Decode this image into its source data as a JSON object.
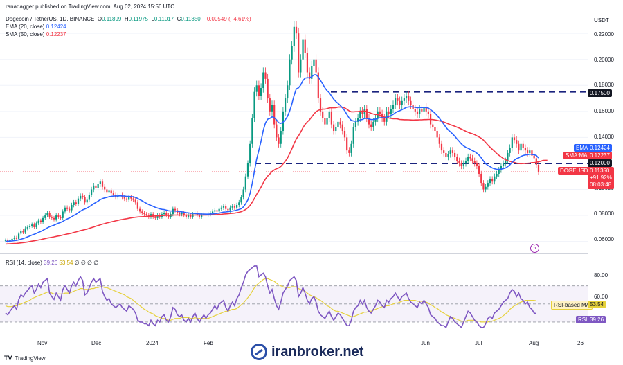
{
  "header": {
    "publisher_line": "ranadagger published on TradingView.com, Aug 02, 2024 15:56 UTC",
    "symbol_line": "Dogecoin / TetherUS, 1D, BINANCE",
    "o_label": "O",
    "o_value": "0.11899",
    "h_label": "H",
    "h_value": "0.11975",
    "l_label": "L",
    "l_value": "0.11017",
    "c_label": "C",
    "c_value": "0.11350",
    "change": "−0.00549 (−4.61%)",
    "ema_label": "EMA (20, close)",
    "ema_value": "0.12424",
    "sma_label": "SMA (50, close)",
    "sma_value": "0.12237",
    "rsi_label": "RSI (14, close)",
    "rsi_value": "39.26",
    "rsi_ma_value": "53.54",
    "rsi_extra": "∅ ∅ ∅ ∅"
  },
  "price_axis": {
    "currency": "USDT",
    "ticks": [
      "0.22000",
      "0.20000",
      "0.18000",
      "0.16000",
      "0.14000",
      "0.10000",
      "0.08000",
      "0.06000"
    ],
    "tags": {
      "resistance": "0.17500",
      "ema_name": "EMA",
      "ema": "0.12424",
      "sma_name": "SMA:MA",
      "sma": "0.12237",
      "support": "0.12000",
      "symbol": "DOGEUSDT",
      "last": "0.11350",
      "last_change": "+91.92%",
      "countdown": "08:03:48"
    }
  },
  "rsi_axis": {
    "ticks": [
      "80.00",
      "60.00"
    ],
    "ma_tag_name": "RSI-based MA",
    "ma_tag": "53.54",
    "rsi_tag_name": "RSI",
    "rsi_tag": "39.26"
  },
  "time_axis": [
    "Nov",
    "Dec",
    "2024",
    "Feb",
    "Jun",
    "Jul",
    "Aug",
    "26"
  ],
  "footer": {
    "brand": "TradingView",
    "watermark": "iranbroker.net"
  },
  "colors": {
    "up": "#089981",
    "down": "#f23645",
    "ema": "#2962ff",
    "sma": "#f23645",
    "rsi": "#7e57c2",
    "rsi_ma": "#e6d13b",
    "level": "#1a237e"
  },
  "chart_data": {
    "type": "candlestick",
    "symbol": "DOGEUSDT",
    "ylim": [
      0.055,
      0.235
    ],
    "rsi_ylim": [
      20,
      95
    ],
    "levels": [
      0.175,
      0.12
    ],
    "closes": [
      0.061,
      0.06,
      0.061,
      0.062,
      0.063,
      0.062,
      0.066,
      0.068,
      0.067,
      0.07,
      0.071,
      0.072,
      0.073,
      0.071,
      0.074,
      0.076,
      0.075,
      0.078,
      0.08,
      0.082,
      0.079,
      0.078,
      0.077,
      0.08,
      0.079,
      0.078,
      0.083,
      0.086,
      0.085,
      0.084,
      0.088,
      0.09,
      0.089,
      0.093,
      0.095,
      0.094,
      0.09,
      0.092,
      0.096,
      0.1,
      0.103,
      0.101,
      0.104,
      0.106,
      0.102,
      0.1,
      0.098,
      0.099,
      0.097,
      0.096,
      0.094,
      0.095,
      0.096,
      0.094,
      0.093,
      0.092,
      0.094,
      0.093,
      0.092,
      0.09,
      0.085,
      0.083,
      0.082,
      0.081,
      0.08,
      0.079,
      0.081,
      0.079,
      0.078,
      0.08,
      0.079,
      0.081,
      0.082,
      0.08,
      0.079,
      0.081,
      0.085,
      0.084,
      0.082,
      0.081,
      0.082,
      0.08,
      0.079,
      0.08,
      0.079,
      0.081,
      0.082,
      0.08,
      0.079,
      0.08,
      0.081,
      0.08,
      0.081,
      0.082,
      0.083,
      0.084,
      0.083,
      0.085,
      0.086,
      0.087,
      0.085,
      0.084,
      0.086,
      0.087,
      0.086,
      0.088,
      0.09,
      0.094,
      0.1,
      0.11,
      0.12,
      0.135,
      0.155,
      0.175,
      0.18,
      0.172,
      0.178,
      0.19,
      0.185,
      0.17,
      0.16,
      0.165,
      0.15,
      0.14,
      0.135,
      0.145,
      0.16,
      0.17,
      0.18,
      0.2,
      0.21,
      0.225,
      0.22,
      0.19,
      0.2,
      0.215,
      0.205,
      0.19,
      0.185,
      0.195,
      0.2,
      0.19,
      0.17,
      0.16,
      0.155,
      0.15,
      0.155,
      0.16,
      0.15,
      0.145,
      0.148,
      0.152,
      0.15,
      0.145,
      0.14,
      0.13,
      0.128,
      0.135,
      0.148,
      0.152,
      0.155,
      0.16,
      0.158,
      0.162,
      0.155,
      0.15,
      0.148,
      0.152,
      0.155,
      0.16,
      0.158,
      0.155,
      0.152,
      0.16,
      0.158,
      0.162,
      0.165,
      0.17,
      0.168,
      0.165,
      0.168,
      0.17,
      0.172,
      0.168,
      0.165,
      0.162,
      0.16,
      0.158,
      0.162,
      0.16,
      0.163,
      0.16,
      0.158,
      0.15,
      0.148,
      0.145,
      0.14,
      0.135,
      0.13,
      0.128,
      0.125,
      0.127,
      0.13,
      0.128,
      0.125,
      0.122,
      0.12,
      0.118,
      0.12,
      0.122,
      0.125,
      0.124,
      0.122,
      0.12,
      0.118,
      0.112,
      0.105,
      0.1,
      0.102,
      0.105,
      0.108,
      0.106,
      0.11,
      0.112,
      0.115,
      0.118,
      0.12,
      0.122,
      0.128,
      0.132,
      0.14,
      0.138,
      0.135,
      0.13,
      0.135,
      0.132,
      0.13,
      0.128,
      0.13,
      0.126,
      0.124,
      0.119,
      0.1135
    ],
    "ema20": [
      0.06,
      0.0601,
      0.0602,
      0.0604,
      0.0606,
      0.0608,
      0.0612,
      0.0617,
      0.0622,
      0.0628,
      0.0635,
      0.0642,
      0.0649,
      0.0655,
      0.0662,
      0.067,
      0.0677,
      0.0685,
      0.0695,
      0.0705,
      0.0713,
      0.0719,
      0.0725,
      0.0733,
      0.074,
      0.0746,
      0.0754,
      0.0764,
      0.0773,
      0.078,
      0.079,
      0.08,
      0.0809,
      0.0821,
      0.0833,
      0.0843,
      0.085,
      0.0857,
      0.0867,
      0.0878,
      0.089,
      0.09,
      0.091,
      0.0921,
      0.0929,
      0.0935,
      0.0939,
      0.0944,
      0.0947,
      0.0949,
      0.095,
      0.095,
      0.0951,
      0.095,
      0.0949,
      0.0947,
      0.0946,
      0.0945,
      0.0943,
      0.0939,
      0.0931,
      0.0921,
      0.0912,
      0.0902,
      0.0893,
      0.0884,
      0.0877,
      0.087,
      0.0862,
      0.0857,
      0.0851,
      0.0847,
      0.0845,
      0.0841,
      0.0836,
      0.0834,
      0.0835,
      0.0834,
      0.0832,
      0.083,
      0.0828,
      0.0825,
      0.0822,
      0.082,
      0.0817,
      0.0816,
      0.0815,
      0.0814,
      0.0812,
      0.0811,
      0.0811,
      0.081,
      0.081,
      0.0811,
      0.0812,
      0.0814,
      0.0816,
      0.0818,
      0.0822,
      0.0826,
      0.0827,
      0.0829,
      0.0831,
      0.0834,
      0.0837,
      0.0841,
      0.0846,
      0.0852,
      0.0866,
      0.089,
      0.0919,
      0.0969,
      0.1048,
      0.1139,
      0.1232,
      0.1301,
      0.1371,
      0.1454,
      0.1512,
      0.154,
      0.1546,
      0.1558,
      0.1552,
      0.1535,
      0.1513,
      0.1508,
      0.1517,
      0.1536,
      0.1562,
      0.1604,
      0.1657,
      0.1723,
      0.1773,
      0.1782,
      0.1803,
      0.1836,
      0.1856,
      0.1859,
      0.1858,
      0.1867,
      0.1881,
      0.1882,
      0.1865,
      0.1839,
      0.181,
      0.1781,
      0.1759,
      0.1744,
      0.1719,
      0.1694,
      0.1675,
      0.1661,
      0.1646,
      0.1627,
      0.1605,
      0.1576,
      0.1549,
      0.1531,
      0.1526,
      0.1525,
      0.1527,
      0.1534,
      0.1538,
      0.1546,
      0.1546,
      0.1542,
      0.1537,
      0.1538,
      0.154,
      0.1546,
      0.1551,
      0.1551,
      0.155,
      0.1556,
      0.1561,
      0.1569,
      0.1577,
      0.159,
      0.1599,
      0.1605,
      0.1613,
      0.1622,
      0.1631,
      0.1634,
      0.1636,
      0.1634,
      0.1631,
      0.1628,
      0.163,
      0.1629,
      0.1631,
      0.1629,
      0.1625,
      0.1613,
      0.16,
      0.1586,
      0.1568,
      0.1547,
      0.1524,
      0.1501,
      0.1477,
      0.1458,
      0.1443,
      0.1427,
      0.1409,
      0.1388,
      0.1369,
      0.135,
      0.1335,
      0.1324,
      0.1317,
      0.1308,
      0.1299,
      0.129,
      0.1279,
      0.1264,
      0.1243,
      0.1219,
      0.1198,
      0.1185,
      0.1176,
      0.1165,
      0.1159,
      0.1155,
      0.1154,
      0.1156,
      0.116,
      0.1165,
      0.1176,
      0.1189,
      0.1209,
      0.1225,
      0.1237,
      0.1243,
      0.1254,
      0.1261,
      0.1265,
      0.1267,
      0.1271,
      0.1269,
      0.1267,
      0.1261,
      0.1242
    ],
    "sma50": [
      0.058,
      0.0581,
      0.0582,
      0.0583,
      0.0584,
      0.0585,
      0.0587,
      0.0589,
      0.0591,
      0.0593,
      0.0596,
      0.0599,
      0.0602,
      0.0605,
      0.0608,
      0.0611,
      0.0614,
      0.0618,
      0.0622,
      0.0626,
      0.0629,
      0.0632,
      0.0635,
      0.0639,
      0.0642,
      0.0645,
      0.0649,
      0.0653,
      0.0657,
      0.066,
      0.0664,
      0.0669,
      0.0673,
      0.0678,
      0.0683,
      0.0687,
      0.0691,
      0.0695,
      0.07,
      0.0706,
      0.0711,
      0.0717,
      0.0722,
      0.0728,
      0.0733,
      0.0737,
      0.0742,
      0.0746,
      0.075,
      0.0754,
      0.0758,
      0.0762,
      0.0766,
      0.0769,
      0.0772,
      0.0775,
      0.0778,
      0.0781,
      0.0784,
      0.0786,
      0.0788,
      0.0789,
      0.079,
      0.0791,
      0.0792,
      0.0793,
      0.0794,
      0.0795,
      0.0796,
      0.0797,
      0.0798,
      0.0799,
      0.08,
      0.0801,
      0.0801,
      0.0802,
      0.0803,
      0.0803,
      0.0803,
      0.0803,
      0.0803,
      0.0803,
      0.0803,
      0.0803,
      0.0803,
      0.0803,
      0.0803,
      0.0803,
      0.0803,
      0.0803,
      0.0803,
      0.0803,
      0.0804,
      0.0804,
      0.0805,
      0.0806,
      0.0806,
      0.0808,
      0.0809,
      0.0811,
      0.0812,
      0.0813,
      0.0815,
      0.0817,
      0.0818,
      0.0821,
      0.0824,
      0.0829,
      0.0836,
      0.0846,
      0.0859,
      0.0877,
      0.0902,
      0.0931,
      0.0962,
      0.0989,
      0.1018,
      0.1051,
      0.108,
      0.1102,
      0.1119,
      0.1138,
      0.115,
      0.1159,
      0.1165,
      0.1177,
      0.1196,
      0.1217,
      0.1242,
      0.1276,
      0.1312,
      0.1352,
      0.1389,
      0.1412,
      0.1441,
      0.1474,
      0.15,
      0.152,
      0.1536,
      0.1557,
      0.158,
      0.1598,
      0.1608,
      0.1614,
      0.1617,
      0.1617,
      0.1621,
      0.1627,
      0.1629,
      0.1628,
      0.1629,
      0.1633,
      0.1634,
      0.1632,
      0.1627,
      0.1616,
      0.1604,
      0.1597,
      0.1597,
      0.1598,
      0.1598,
      0.1602,
      0.1601,
      0.1603,
      0.1598,
      0.1592,
      0.1585,
      0.158,
      0.1576,
      0.1575,
      0.157,
      0.1564,
      0.1557,
      0.1554,
      0.1549,
      0.1546,
      0.1543,
      0.1544,
      0.1542,
      0.1538,
      0.1537,
      0.1536,
      0.1536,
      0.1535,
      0.1534,
      0.1533,
      0.1534,
      0.1534,
      0.1535,
      0.1535,
      0.1537,
      0.1537,
      0.1538,
      0.1538,
      0.1537,
      0.1534,
      0.1531,
      0.1527,
      0.1524,
      0.1518,
      0.1512,
      0.1505,
      0.1498,
      0.1492,
      0.1486,
      0.1479,
      0.1472,
      0.1464,
      0.1456,
      0.1447,
      0.144,
      0.1433,
      0.1428,
      0.1421,
      0.1412,
      0.1403,
      0.1393,
      0.1379,
      0.1361,
      0.1342,
      0.1325,
      0.1309,
      0.1294,
      0.1277,
      0.1263,
      0.1251,
      0.1238,
      0.1229,
      0.1221,
      0.1216,
      0.1212,
      0.1208,
      0.1202,
      0.1199,
      0.1198,
      0.1199,
      0.12,
      0.1201,
      0.1203,
      0.1206,
      0.1206,
      0.1209,
      0.1213,
      0.1217,
      0.1223,
      0.1224,
      0.1224
    ],
    "rsi": [
      40,
      38,
      42,
      45,
      48,
      44,
      55,
      60,
      58,
      62,
      65,
      68,
      70,
      62,
      66,
      72,
      68,
      74,
      76,
      78,
      62,
      58,
      55,
      62,
      58,
      54,
      66,
      70,
      66,
      62,
      70,
      74,
      70,
      76,
      80,
      76,
      60,
      62,
      68,
      74,
      78,
      74,
      76,
      78,
      64,
      58,
      54,
      56,
      50,
      48,
      46,
      48,
      50,
      46,
      44,
      42,
      48,
      46,
      44,
      40,
      32,
      30,
      30,
      28,
      28,
      26,
      32,
      28,
      26,
      32,
      30,
      36,
      38,
      32,
      30,
      36,
      46,
      44,
      38,
      36,
      38,
      32,
      30,
      34,
      30,
      36,
      40,
      34,
      30,
      34,
      38,
      34,
      38,
      40,
      44,
      48,
      44,
      50,
      52,
      54,
      46,
      42,
      48,
      52,
      48,
      56,
      60,
      68,
      74,
      82,
      86,
      88,
      90,
      92,
      92,
      80,
      82,
      84,
      80,
      70,
      62,
      66,
      56,
      48,
      44,
      52,
      62,
      66,
      70,
      76,
      78,
      80,
      76,
      58,
      62,
      68,
      62,
      54,
      50,
      56,
      58,
      52,
      42,
      38,
      36,
      34,
      38,
      42,
      36,
      32,
      36,
      40,
      38,
      34,
      30,
      26,
      26,
      32,
      42,
      46,
      48,
      54,
      50,
      54,
      46,
      42,
      40,
      44,
      48,
      54,
      52,
      48,
      46,
      54,
      52,
      56,
      58,
      62,
      58,
      54,
      58,
      60,
      62,
      56,
      52,
      50,
      48,
      46,
      52,
      50,
      54,
      50,
      46,
      38,
      36,
      34,
      30,
      28,
      26,
      26,
      24,
      30,
      36,
      34,
      30,
      28,
      26,
      24,
      30,
      36,
      42,
      40,
      36,
      32,
      30,
      26,
      24,
      24,
      28,
      34,
      36,
      34,
      40,
      42,
      44,
      48,
      52,
      54,
      56,
      62,
      66,
      64,
      58,
      62,
      56,
      54,
      50,
      52,
      46,
      44,
      40,
      39.26
    ],
    "rsi_ma": [
      48,
      47,
      47,
      47,
      48,
      48,
      49,
      50,
      51,
      52,
      53,
      54,
      56,
      57,
      58,
      59,
      60,
      61,
      62,
      63,
      63,
      62,
      61,
      61,
      61,
      61,
      61,
      62,
      62,
      62,
      63,
      64,
      65,
      66,
      67,
      67,
      66,
      66,
      66,
      67,
      67,
      68,
      68,
      69,
      69,
      68,
      68,
      67,
      66,
      65,
      64,
      63,
      62,
      61,
      60,
      58,
      57,
      56,
      54,
      52,
      50,
      48,
      46,
      44,
      43,
      41,
      40,
      39,
      37,
      36,
      35,
      34,
      34,
      33,
      32,
      32,
      33,
      34,
      34,
      34,
      35,
      35,
      35,
      35,
      34,
      34,
      35,
      34,
      34,
      34,
      34,
      34,
      34,
      35,
      36,
      37,
      38,
      39,
      40,
      41,
      42,
      42,
      43,
      44,
      44,
      45,
      47,
      49,
      51,
      54,
      57,
      60,
      64,
      68,
      71,
      73,
      75,
      77,
      78,
      78,
      77,
      76,
      75,
      73,
      71,
      70,
      69,
      68,
      68,
      68,
      69,
      69,
      69,
      67,
      66,
      65,
      64,
      62,
      60,
      59,
      58,
      57,
      55,
      54,
      52,
      50,
      48,
      47,
      45,
      43,
      42,
      42,
      41,
      40,
      39,
      38,
      37,
      36,
      36,
      37,
      38,
      39,
      40,
      41,
      41,
      42,
      42,
      43,
      44,
      45,
      46,
      47,
      47,
      48,
      48,
      49,
      50,
      51,
      51,
      52,
      53,
      54,
      54,
      54,
      54,
      54,
      54,
      53,
      53,
      53,
      53,
      52,
      51,
      49,
      48,
      46,
      45,
      43,
      41,
      40,
      38,
      37,
      36,
      35,
      34,
      33,
      32,
      31,
      31,
      31,
      32,
      32,
      32,
      32,
      31,
      31,
      30,
      30,
      30,
      30,
      31,
      31,
      32,
      33,
      34,
      35,
      37,
      39,
      41,
      44,
      46,
      48,
      49,
      51,
      52,
      53,
      54,
      54,
      54,
      54,
      54,
      53.54
    ]
  }
}
